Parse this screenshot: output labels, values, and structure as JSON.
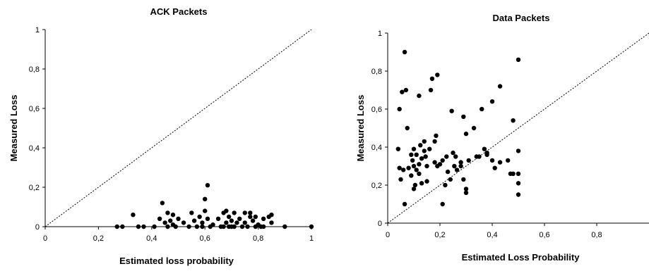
{
  "chart_data": [
    {
      "type": "scatter",
      "title": "ACK Packets",
      "xlabel": "Estimated loss probability",
      "ylabel": "Measured Loss",
      "xlim": [
        0,
        1
      ],
      "ylim": [
        0,
        1
      ],
      "xticks": [
        "0",
        "0,2",
        "0,4",
        "0,6",
        "0,8",
        "1"
      ],
      "yticks": [
        "0",
        "0,2",
        "0,4",
        "0,6",
        "0,8",
        "1"
      ],
      "diagonal": "y = x (dotted)",
      "grid": false,
      "points": [
        [
          0.27,
          0
        ],
        [
          0.29,
          0
        ],
        [
          0.33,
          0.06
        ],
        [
          0.35,
          0
        ],
        [
          0.37,
          0
        ],
        [
          0.41,
          0
        ],
        [
          0.43,
          0.04
        ],
        [
          0.44,
          0.12
        ],
        [
          0.45,
          0.02
        ],
        [
          0.46,
          0
        ],
        [
          0.46,
          0.07
        ],
        [
          0.47,
          0.03
        ],
        [
          0.48,
          0.01
        ],
        [
          0.48,
          0.06
        ],
        [
          0.49,
          0
        ],
        [
          0.5,
          0.04
        ],
        [
          0.52,
          0.02
        ],
        [
          0.54,
          0
        ],
        [
          0.55,
          0.07
        ],
        [
          0.56,
          0.03
        ],
        [
          0.57,
          0
        ],
        [
          0.58,
          0.05
        ],
        [
          0.59,
          0
        ],
        [
          0.59,
          0.02
        ],
        [
          0.6,
          0.08
        ],
        [
          0.6,
          0.14
        ],
        [
          0.61,
          0.21
        ],
        [
          0.61,
          0.04
        ],
        [
          0.62,
          0
        ],
        [
          0.63,
          0.01
        ],
        [
          0.65,
          0.04
        ],
        [
          0.66,
          0
        ],
        [
          0.67,
          0.07
        ],
        [
          0.67,
          0
        ],
        [
          0.68,
          0.08
        ],
        [
          0.68,
          0.02
        ],
        [
          0.69,
          0
        ],
        [
          0.69,
          0.05
        ],
        [
          0.7,
          0
        ],
        [
          0.7,
          0.03
        ],
        [
          0.71,
          0.07
        ],
        [
          0.71,
          0
        ],
        [
          0.72,
          0.02
        ],
        [
          0.73,
          0.04
        ],
        [
          0.74,
          0
        ],
        [
          0.75,
          0.07
        ],
        [
          0.75,
          0.02
        ],
        [
          0.76,
          0
        ],
        [
          0.77,
          0.05
        ],
        [
          0.77,
          0.07
        ],
        [
          0.78,
          0.03
        ],
        [
          0.79,
          0
        ],
        [
          0.79,
          0.05
        ],
        [
          0.8,
          0.01
        ],
        [
          0.81,
          0
        ],
        [
          0.82,
          0.04
        ],
        [
          0.82,
          0
        ],
        [
          0.84,
          0.05
        ],
        [
          0.85,
          0.06
        ],
        [
          0.85,
          0.02
        ],
        [
          0.9,
          0
        ],
        [
          1.0,
          0
        ]
      ]
    },
    {
      "type": "scatter",
      "title": "Data Packets",
      "xlabel": "Estimated Loss Probability",
      "ylabel": "Measured Loss",
      "xlim": [
        0,
        1
      ],
      "ylim": [
        0,
        1
      ],
      "xticks": [
        "0",
        "0,2",
        "0,4",
        "0,6",
        "0,8"
      ],
      "yticks": [
        "0",
        "0,2",
        "0,4",
        "0,6",
        "0,8",
        "1"
      ],
      "diagonal": "y = x (dotted)",
      "grid": false,
      "points": [
        [
          0.04,
          0.39
        ],
        [
          0.045,
          0.6
        ],
        [
          0.045,
          0.29
        ],
        [
          0.05,
          0.23
        ],
        [
          0.055,
          0.69
        ],
        [
          0.06,
          0.28
        ],
        [
          0.065,
          0.9
        ],
        [
          0.065,
          0.1
        ],
        [
          0.07,
          0.7
        ],
        [
          0.075,
          0.5
        ],
        [
          0.08,
          0.29
        ],
        [
          0.09,
          0.36
        ],
        [
          0.09,
          0.25
        ],
        [
          0.095,
          0.33
        ],
        [
          0.1,
          0.39
        ],
        [
          0.1,
          0.3
        ],
        [
          0.1,
          0.18
        ],
        [
          0.105,
          0.2
        ],
        [
          0.11,
          0.36
        ],
        [
          0.11,
          0.28
        ],
        [
          0.12,
          0.67
        ],
        [
          0.12,
          0.31
        ],
        [
          0.12,
          0.26
        ],
        [
          0.125,
          0.41
        ],
        [
          0.13,
          0.34
        ],
        [
          0.13,
          0.21
        ],
        [
          0.14,
          0.43
        ],
        [
          0.14,
          0.38
        ],
        [
          0.145,
          0.35
        ],
        [
          0.15,
          0.3
        ],
        [
          0.15,
          0.22
        ],
        [
          0.16,
          0.39
        ],
        [
          0.165,
          0.7
        ],
        [
          0.17,
          0.76
        ],
        [
          0.18,
          0.43
        ],
        [
          0.18,
          0.32
        ],
        [
          0.185,
          0.46
        ],
        [
          0.19,
          0.78
        ],
        [
          0.19,
          0.3
        ],
        [
          0.2,
          0.31
        ],
        [
          0.21,
          0.1
        ],
        [
          0.21,
          0.33
        ],
        [
          0.22,
          0.2
        ],
        [
          0.225,
          0.35
        ],
        [
          0.23,
          0.27
        ],
        [
          0.24,
          0.23
        ],
        [
          0.245,
          0.59
        ],
        [
          0.25,
          0.37
        ],
        [
          0.255,
          0.3
        ],
        [
          0.26,
          0.35
        ],
        [
          0.265,
          0.28
        ],
        [
          0.28,
          0.3
        ],
        [
          0.28,
          0.32
        ],
        [
          0.29,
          0.56
        ],
        [
          0.29,
          0.23
        ],
        [
          0.3,
          0.47
        ],
        [
          0.3,
          0.18
        ],
        [
          0.3,
          0.16
        ],
        [
          0.31,
          0.33
        ],
        [
          0.33,
          0.5
        ],
        [
          0.34,
          0.35
        ],
        [
          0.35,
          0.35
        ],
        [
          0.36,
          0.6
        ],
        [
          0.37,
          0.39
        ],
        [
          0.38,
          0.37
        ],
        [
          0.38,
          0.36
        ],
        [
          0.4,
          0.64
        ],
        [
          0.4,
          0.33
        ],
        [
          0.41,
          0.29
        ],
        [
          0.43,
          0.72
        ],
        [
          0.43,
          0.32
        ],
        [
          0.46,
          0.33
        ],
        [
          0.47,
          0.26
        ],
        [
          0.48,
          0.54
        ],
        [
          0.48,
          0.26
        ],
        [
          0.5,
          0.86
        ],
        [
          0.5,
          0.38
        ],
        [
          0.5,
          0.26
        ],
        [
          0.5,
          0.21
        ],
        [
          0.5,
          0.15
        ]
      ]
    }
  ]
}
